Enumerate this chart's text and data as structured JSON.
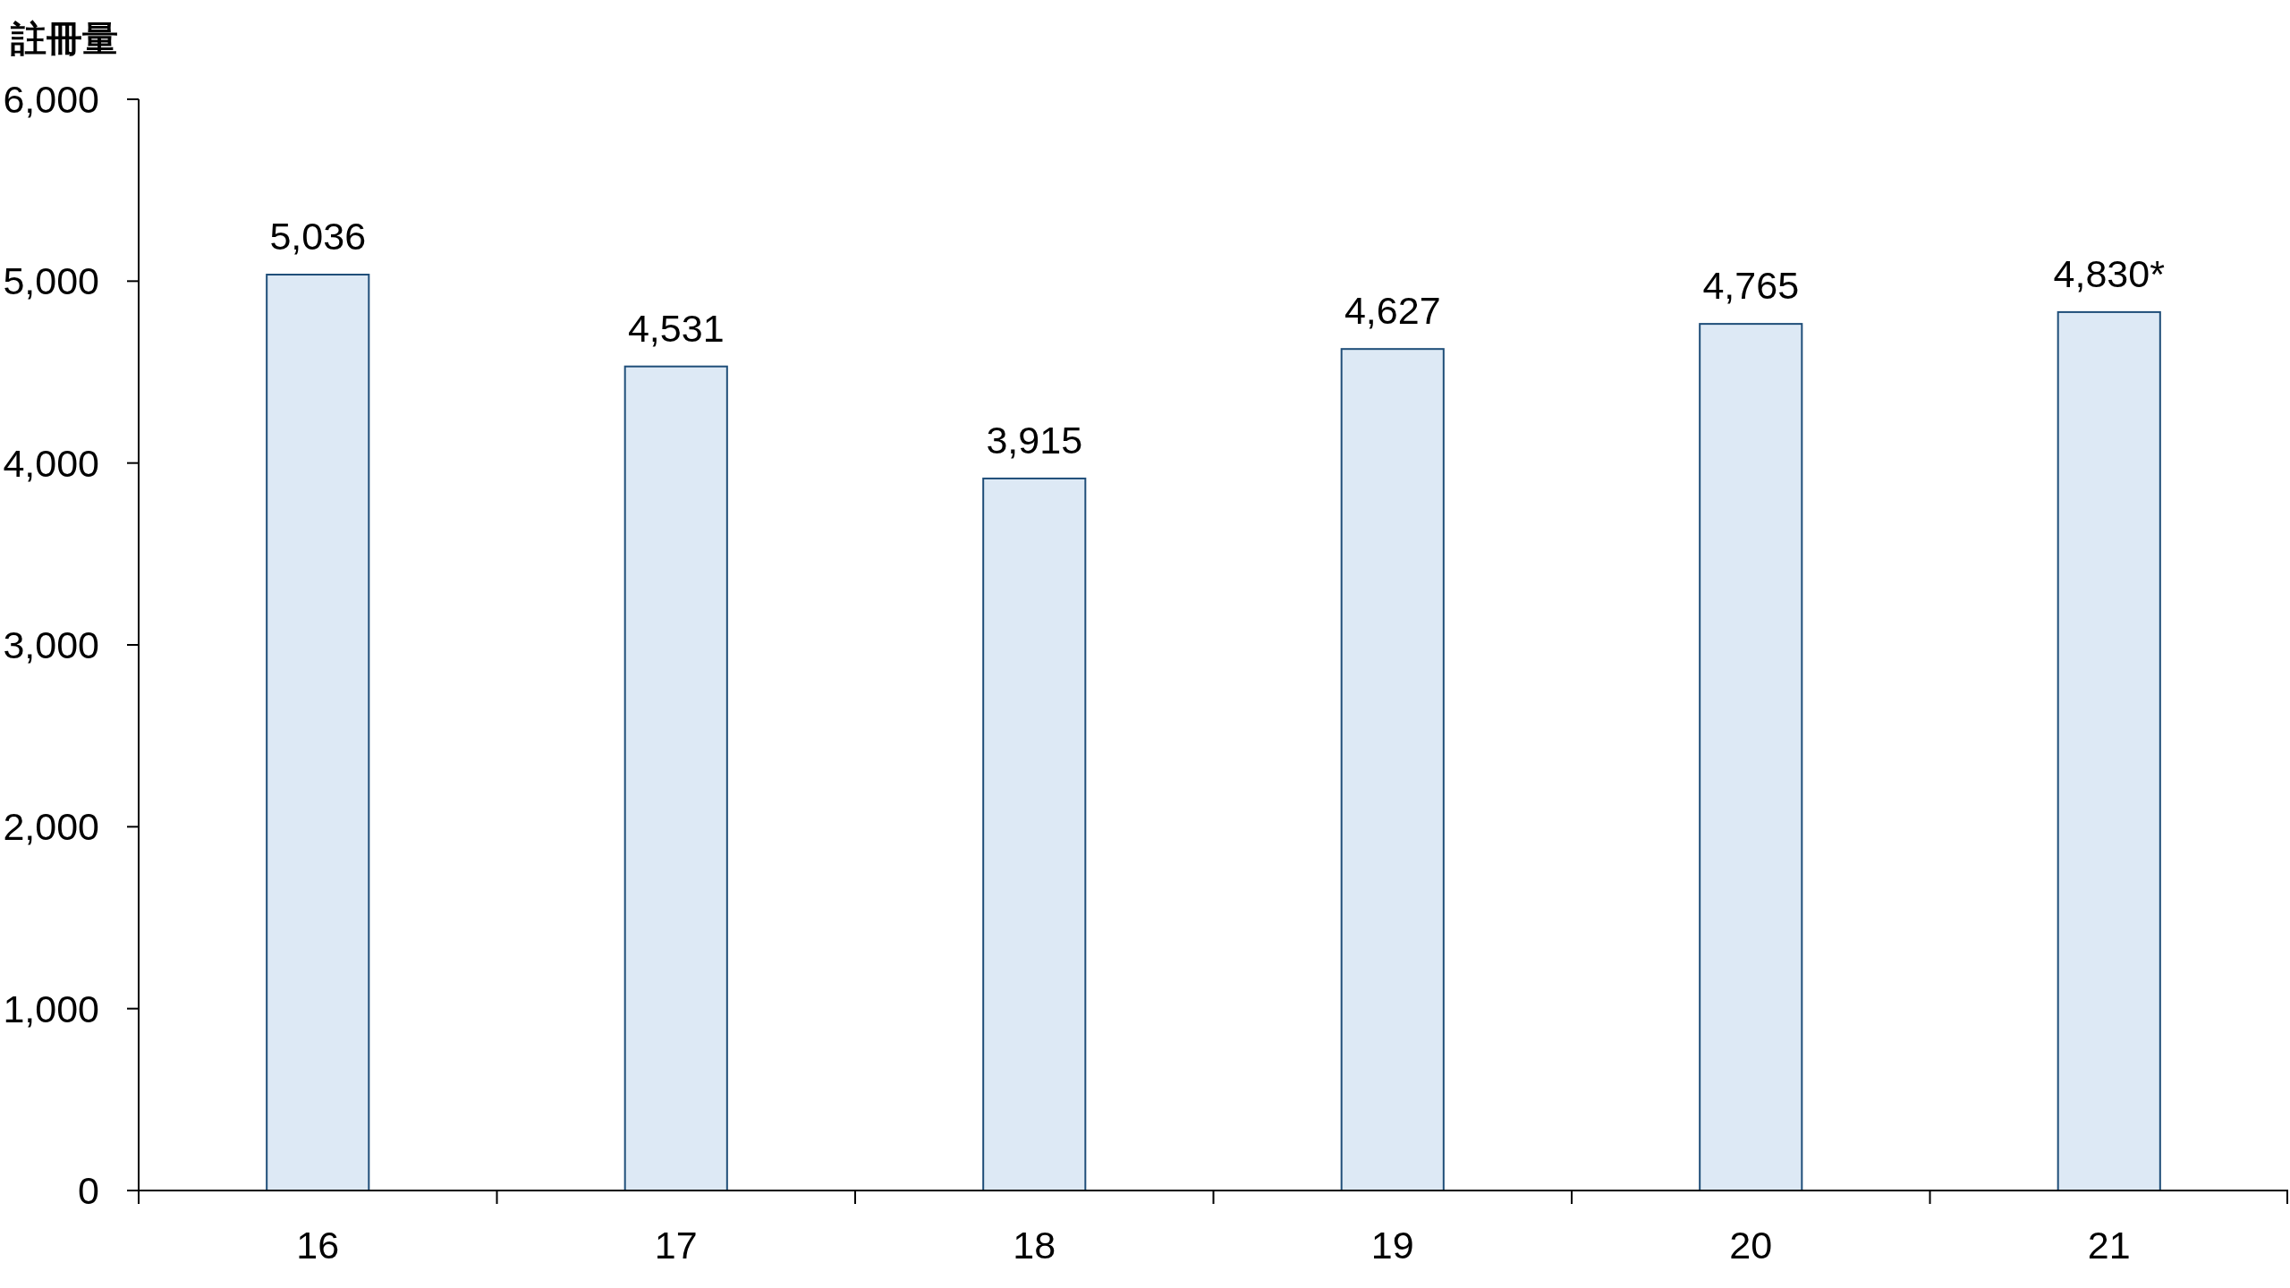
{
  "chart_data": {
    "type": "bar",
    "ylabel": "註冊量",
    "categories": [
      "16",
      "17",
      "18",
      "19",
      "20",
      "21"
    ],
    "values": [
      5036,
      4531,
      3915,
      4627,
      4765,
      4830
    ],
    "value_labels": [
      "5,036",
      "4,531",
      "3,915",
      "4,627",
      "4,765",
      "4,830*"
    ],
    "color": "#dde9f5",
    "ylim": [
      0,
      6000
    ],
    "yticks": [
      0,
      {
        "value": 1000,
        "label": "1,000"
      },
      {
        "value": 2000,
        "label": "2,000"
      },
      {
        "value": 3000,
        "label": "3,000"
      },
      {
        "value": 4000,
        "label": "4,000"
      },
      {
        "value": 5000,
        "label": "5,000"
      },
      {
        "value": 6000,
        "label": "6,000"
      }
    ]
  }
}
